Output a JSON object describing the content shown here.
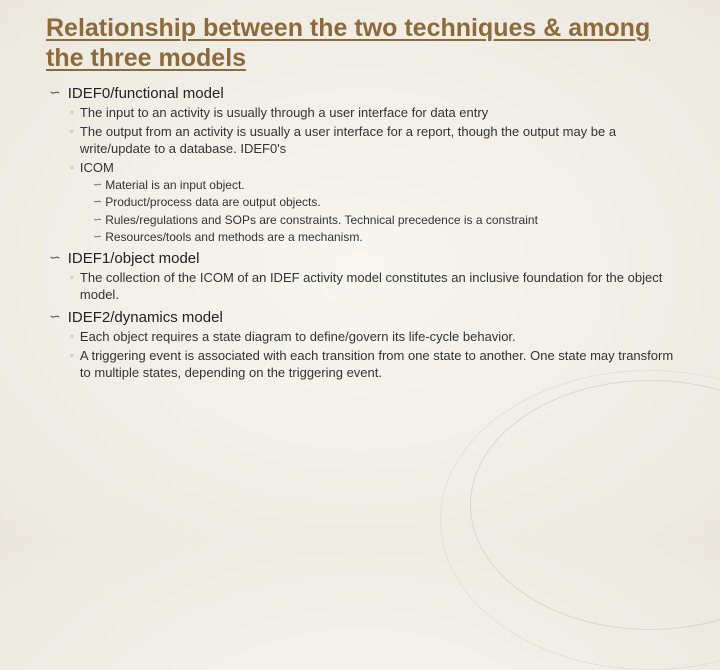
{
  "title": "Relationship between the two techniques & among the three models",
  "colors": {
    "title_color": "#8c6a3a",
    "text_color": "#333333",
    "background": "#f5f3ed"
  },
  "sections": [
    {
      "heading": "IDEF0/functional model",
      "sub": [
        "The input to an activity is usually through a user interface for data entry",
        "The output from an activity is usually a user interface for a report, though the output may  be a write/update to a database. IDEF0's",
        "ICOM"
      ],
      "subsub": [
        "Material is an input object.",
        "Product/process data are output objects.",
        "Rules/regulations and SOPs are constraints.  Technical precedence is a constraint",
        "Resources/tools and methods are a mechanism."
      ]
    },
    {
      "heading": "IDEF1/object model",
      "sub": [
        "The collection of the ICOM of an IDEF activity model constitutes an inclusive foundation for the object model."
      ],
      "subsub": []
    },
    {
      "heading": "IDEF2/dynamics model",
      "sub": [
        "Each object requires a state diagram to define/govern its life-cycle behavior.",
        "A triggering event is associated with each transition from one state to another.  One state may transform to multiple states, depending on the triggering event."
      ],
      "subsub": []
    }
  ]
}
